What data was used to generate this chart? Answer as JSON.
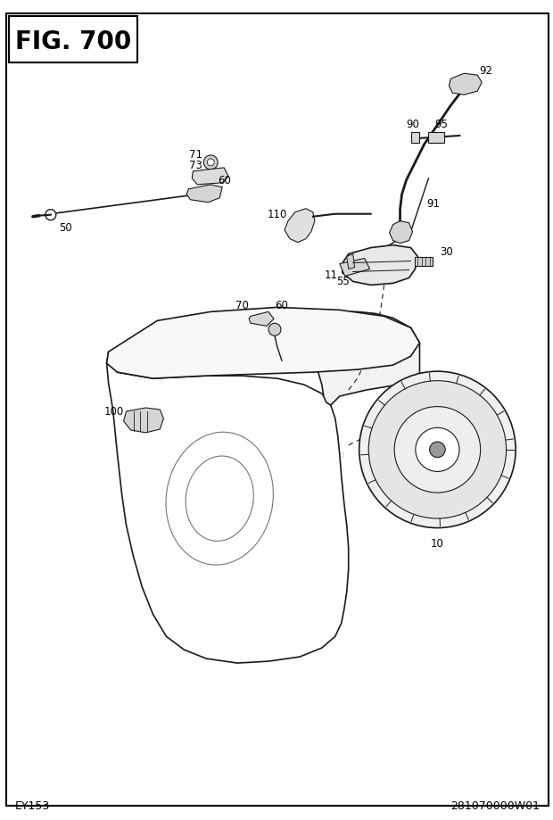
{
  "title": "FIG. 700",
  "bottom_left": "EY153",
  "bottom_right": "281070000W01",
  "watermark": "eReplacementParts.com",
  "bg_color": "#ffffff",
  "line_color": "#1a1a1a"
}
